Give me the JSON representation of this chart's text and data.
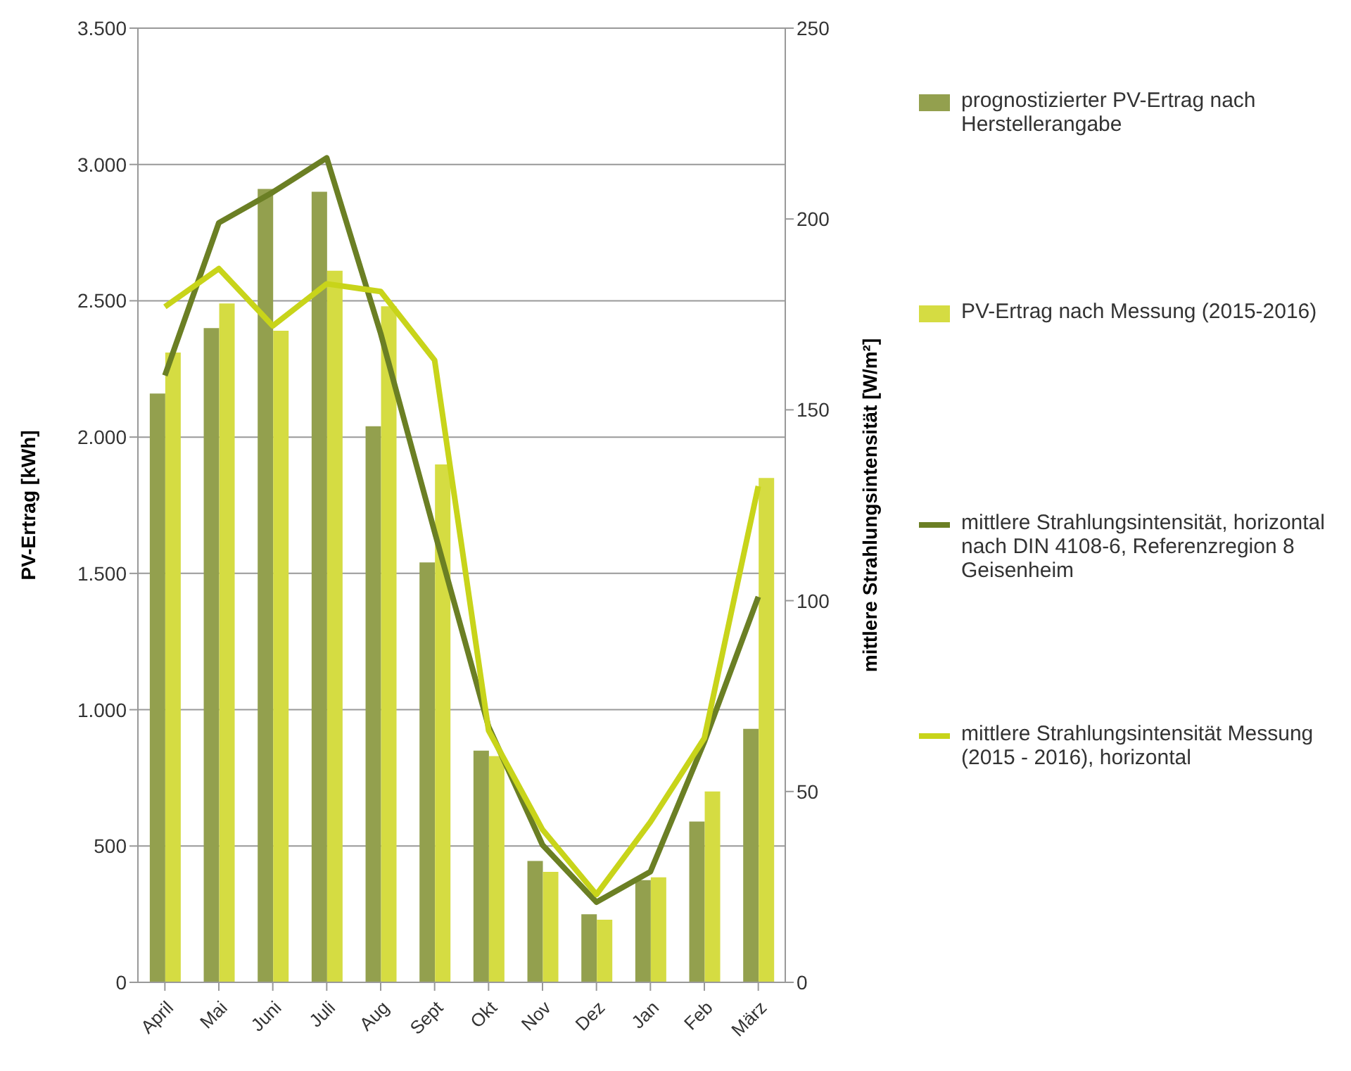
{
  "chart_data": {
    "type": "bar",
    "categories": [
      "April",
      "Mai",
      "Juni",
      "Juli",
      "Aug",
      "Sept",
      "Okt",
      "Nov",
      "Dez",
      "Jan",
      "Feb",
      "März"
    ],
    "ylabel": "PV-Ertrag [kWh]",
    "y2label": "mittlere Strahlungsintensität [W/m²]",
    "ylim": [
      0,
      3500
    ],
    "yticks": [
      {
        "value": 0,
        "label": "0"
      },
      {
        "value": 500,
        "label": "500"
      },
      {
        "value": 1000,
        "label": "1.000"
      },
      {
        "value": 1500,
        "label": "1.500"
      },
      {
        "value": 2000,
        "label": "2.000"
      },
      {
        "value": 2500,
        "label": "2.500"
      },
      {
        "value": 3000,
        "label": "3.000"
      },
      {
        "value": 3500,
        "label": "3.500"
      }
    ],
    "y2lim": [
      0,
      250
    ],
    "y2ticks": [
      0,
      50,
      100,
      150,
      200,
      250
    ],
    "grid": "y",
    "legend": "right",
    "series": [
      {
        "name": "prognostizierter PV-Ertrag nach Herstellerangabe",
        "color": "#93a04e",
        "values": [
          2160,
          2400,
          2910,
          2900,
          2040,
          1540,
          850,
          445,
          250,
          375,
          590,
          930
        ]
      },
      {
        "name": "PV-Ertrag nach Messung (2015-2016)",
        "color": "#d5dc42",
        "values": [
          2310,
          2490,
          2390,
          2610,
          2480,
          1900,
          830,
          405,
          230,
          385,
          700,
          1850
        ]
      },
      {
        "name": "mittlere Strahlungsintensität, horizontal nach DIN 4108-6, Referenzregion 8 Geisenheim",
        "type": "line",
        "axis": "y2",
        "color": "#6b7f24",
        "values": [
          159,
          199,
          207,
          216,
          170,
          118,
          67,
          36,
          21,
          29,
          63,
          101
        ]
      },
      {
        "name": "mittlere Strahlungsintensität Messung (2015 - 2016), horizontal",
        "type": "line",
        "axis": "y2",
        "color": "#c8d41a",
        "values": [
          177,
          187,
          172,
          183,
          181,
          163,
          66,
          40,
          23,
          42,
          64,
          130
        ]
      }
    ]
  }
}
